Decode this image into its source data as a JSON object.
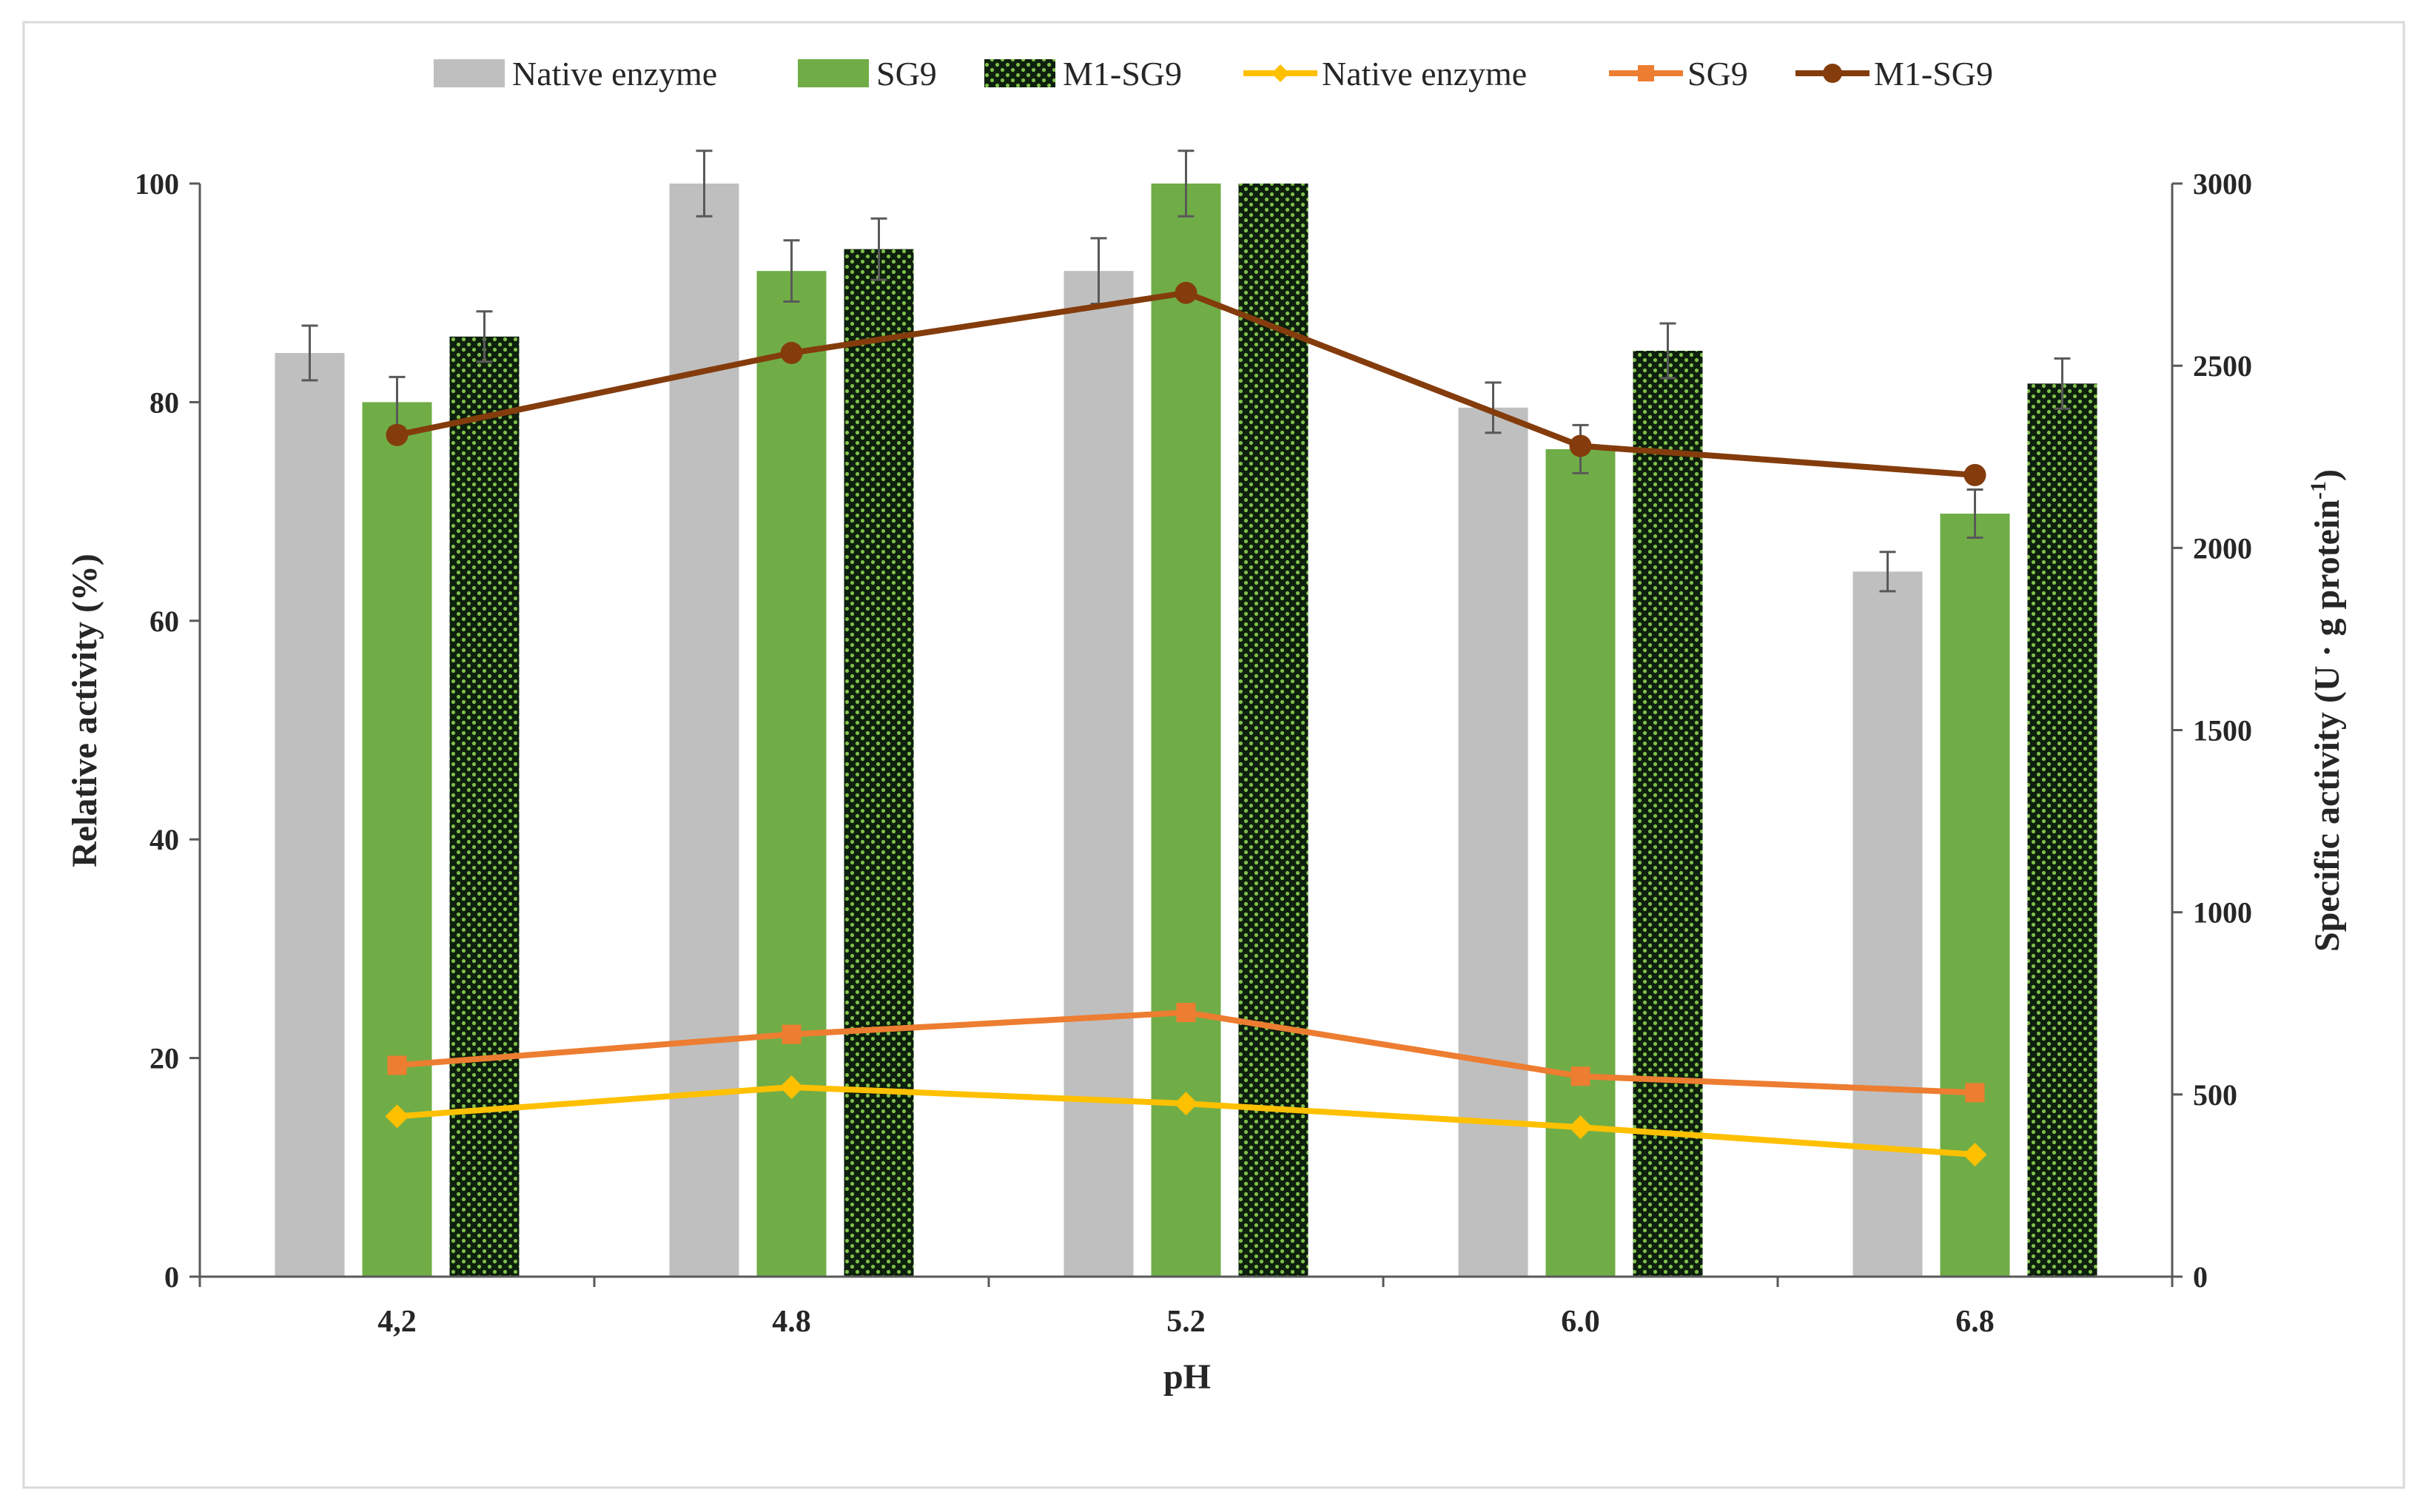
{
  "chart_data": {
    "type": "bar+line (dual axis)",
    "xlabel": "pH",
    "ylabel_left": "Relative activity (%)",
    "ylabel_right_main": "Specific activity (U · g protein",
    "ylabel_right_sup": "-1",
    "ylabel_right_end": ")",
    "ylim_left": [
      0,
      100
    ],
    "ylim_right": [
      0,
      3000
    ],
    "yticks_left": [
      "0",
      "20",
      "40",
      "60",
      "80",
      "100"
    ],
    "yticks_right": [
      "0",
      "500",
      "1000",
      "1500",
      "2000",
      "2500",
      "3000"
    ],
    "categories": [
      "4,2",
      "4.8",
      "5.2",
      "6.0",
      "6.8"
    ],
    "bar_series": [
      {
        "name": "Native enzyme",
        "axis": "left",
        "color": "#bfbfbf",
        "values": [
          84.5,
          100,
          92,
          79.5,
          64.5
        ],
        "errors": [
          2.5,
          3,
          3,
          2.3,
          1.8
        ]
      },
      {
        "name": "SG9",
        "axis": "left",
        "color": "#70ad47",
        "values": [
          80,
          92,
          100,
          75.7,
          69.8
        ],
        "errors": [
          2.3,
          2.8,
          3,
          2.2,
          2.2
        ]
      },
      {
        "name": "M1-SG9",
        "axis": "left",
        "color": "#0d1f0d",
        "pattern_dot_color": "#7fbf4a",
        "values": [
          86,
          94,
          100,
          84.7,
          81.7
        ],
        "errors": [
          2.3,
          2.8,
          0,
          2.5,
          2.3
        ]
      }
    ],
    "line_series": [
      {
        "name": "Native enzyme",
        "axis": "right",
        "color": "#ffc000",
        "marker": "diamond",
        "values": [
          440,
          520,
          475,
          410,
          335
        ]
      },
      {
        "name": "SG9",
        "axis": "right",
        "color": "#ed7d31",
        "marker": "square",
        "values": [
          580,
          665,
          725,
          550,
          505
        ]
      },
      {
        "name": "M1-SG9",
        "axis": "right",
        "color": "#843c0c",
        "marker": "circle",
        "values": [
          2310,
          2535,
          2700,
          2280,
          2200
        ]
      }
    ],
    "legend_position": "top"
  }
}
